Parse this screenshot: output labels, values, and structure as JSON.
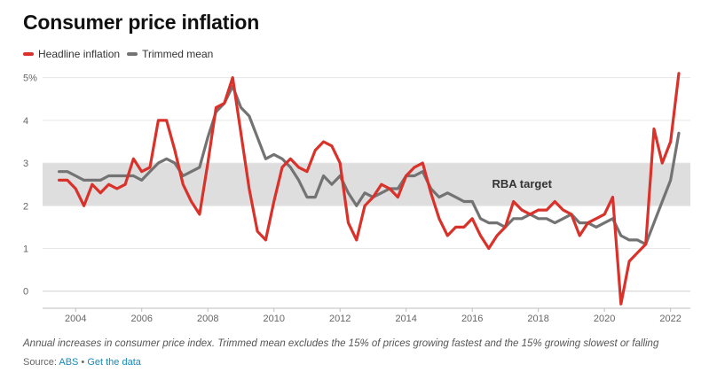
{
  "chart_data": {
    "type": "line",
    "title": "Consumer price inflation",
    "ylabel": "",
    "xlabel": "",
    "ylim": [
      -0.4,
      5.2
    ],
    "xlim": [
      2003.0,
      2022.6
    ],
    "y_ticks": [
      "0",
      "1",
      "2",
      "3",
      "4",
      "5%"
    ],
    "y_tick_values": [
      0,
      1,
      2,
      3,
      4,
      5
    ],
    "x_ticks": [
      "2004",
      "2006",
      "2008",
      "2010",
      "2012",
      "2014",
      "2016",
      "2018",
      "2020",
      "2022"
    ],
    "x_tick_values": [
      2004,
      2006,
      2008,
      2010,
      2012,
      2014,
      2016,
      2018,
      2020,
      2022
    ],
    "grid": true,
    "band": {
      "label": "RBA target",
      "y_from": 2,
      "y_to": 3,
      "color": "#dedede"
    },
    "series": [
      {
        "name": "Headline inflation",
        "color": "#d9322b",
        "x": [
          2003.5,
          2003.75,
          2004.0,
          2004.25,
          2004.5,
          2004.75,
          2005.0,
          2005.25,
          2005.5,
          2005.75,
          2006.0,
          2006.25,
          2006.5,
          2006.75,
          2007.0,
          2007.25,
          2007.5,
          2007.75,
          2008.0,
          2008.25,
          2008.5,
          2008.75,
          2009.0,
          2009.25,
          2009.5,
          2009.75,
          2010.0,
          2010.25,
          2010.5,
          2010.75,
          2011.0,
          2011.25,
          2011.5,
          2011.75,
          2012.0,
          2012.25,
          2012.5,
          2012.75,
          2013.0,
          2013.25,
          2013.5,
          2013.75,
          2014.0,
          2014.25,
          2014.5,
          2014.75,
          2015.0,
          2015.25,
          2015.5,
          2015.75,
          2016.0,
          2016.25,
          2016.5,
          2016.75,
          2017.0,
          2017.25,
          2017.5,
          2017.75,
          2018.0,
          2018.25,
          2018.5,
          2018.75,
          2019.0,
          2019.25,
          2019.5,
          2019.75,
          2020.0,
          2020.25,
          2020.5,
          2020.75,
          2021.0,
          2021.25,
          2021.5,
          2021.75,
          2022.0,
          2022.25
        ],
        "values": [
          2.6,
          2.6,
          2.4,
          2.0,
          2.5,
          2.3,
          2.5,
          2.4,
          2.5,
          3.1,
          2.8,
          2.9,
          4.0,
          4.0,
          3.3,
          2.5,
          2.1,
          1.8,
          3.0,
          4.3,
          4.4,
          5.0,
          3.7,
          2.4,
          1.4,
          1.2,
          2.1,
          2.9,
          3.1,
          2.9,
          2.8,
          3.3,
          3.5,
          3.4,
          3.0,
          1.6,
          1.2,
          2.0,
          2.2,
          2.5,
          2.4,
          2.2,
          2.7,
          2.9,
          3.0,
          2.3,
          1.7,
          1.3,
          1.5,
          1.5,
          1.7,
          1.3,
          1.0,
          1.3,
          1.5,
          2.1,
          1.9,
          1.8,
          1.9,
          1.9,
          2.1,
          1.9,
          1.8,
          1.3,
          1.6,
          1.7,
          1.8,
          2.2,
          -0.3,
          0.7,
          0.9,
          1.1,
          3.8,
          3.0,
          3.5,
          5.1
        ]
      },
      {
        "name": "Trimmed mean",
        "color": "#737373",
        "x": [
          2003.5,
          2003.75,
          2004.0,
          2004.25,
          2004.5,
          2004.75,
          2005.0,
          2005.25,
          2005.5,
          2005.75,
          2006.0,
          2006.25,
          2006.5,
          2006.75,
          2007.0,
          2007.25,
          2007.5,
          2007.75,
          2008.0,
          2008.25,
          2008.5,
          2008.75,
          2009.0,
          2009.25,
          2009.5,
          2009.75,
          2010.0,
          2010.25,
          2010.5,
          2010.75,
          2011.0,
          2011.25,
          2011.5,
          2011.75,
          2012.0,
          2012.25,
          2012.5,
          2012.75,
          2013.0,
          2013.25,
          2013.5,
          2013.75,
          2014.0,
          2014.25,
          2014.5,
          2014.75,
          2015.0,
          2015.25,
          2015.5,
          2015.75,
          2016.0,
          2016.25,
          2016.5,
          2016.75,
          2017.0,
          2017.25,
          2017.5,
          2017.75,
          2018.0,
          2018.25,
          2018.5,
          2018.75,
          2019.0,
          2019.25,
          2019.5,
          2019.75,
          2020.0,
          2020.25,
          2020.5,
          2020.75,
          2021.0,
          2021.25,
          2021.5,
          2021.75,
          2022.0,
          2022.25
        ],
        "values": [
          2.8,
          2.8,
          2.7,
          2.6,
          2.6,
          2.6,
          2.7,
          2.7,
          2.7,
          2.7,
          2.6,
          2.8,
          3.0,
          3.1,
          3.0,
          2.7,
          2.8,
          2.9,
          3.6,
          4.2,
          4.4,
          4.8,
          4.3,
          4.1,
          3.6,
          3.1,
          3.2,
          3.1,
          2.9,
          2.6,
          2.2,
          2.2,
          2.7,
          2.5,
          2.7,
          2.3,
          2.0,
          2.3,
          2.2,
          2.3,
          2.4,
          2.4,
          2.7,
          2.7,
          2.8,
          2.4,
          2.2,
          2.3,
          2.2,
          2.1,
          2.1,
          1.7,
          1.6,
          1.6,
          1.5,
          1.7,
          1.7,
          1.8,
          1.7,
          1.7,
          1.6,
          1.7,
          1.8,
          1.6,
          1.6,
          1.5,
          1.6,
          1.7,
          1.3,
          1.2,
          1.2,
          1.1,
          1.6,
          2.1,
          2.6,
          3.7
        ]
      }
    ]
  },
  "caption": "Annual increases in consumer price index. Trimmed mean excludes the 15% of prices growing fastest and the 15% growing slowest or falling",
  "source": {
    "prefix": "Source: ",
    "org_link": "ABS",
    "separator": " • ",
    "data_link": "Get the data"
  }
}
